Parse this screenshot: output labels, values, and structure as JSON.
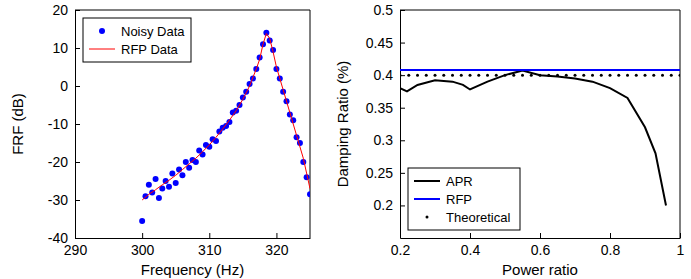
{
  "chart_data": [
    {
      "type": "line",
      "x_label": "Frequency (Hz)",
      "y_label": "FRF (dB)",
      "xlim": [
        290,
        325
      ],
      "ylim": [
        -40,
        20
      ],
      "xticks": [
        290,
        300,
        310,
        320
      ],
      "yticks": [
        -40,
        -30,
        -20,
        -10,
        0,
        10,
        20
      ],
      "legend": "upper left",
      "series": [
        {
          "name": "Noisy Data",
          "type": "scatter",
          "color": "#0000ff",
          "marker": "circle",
          "line_style": "none",
          "x": [
            300,
            300.5,
            301,
            301.5,
            302,
            302.5,
            303,
            303.5,
            304,
            304.5,
            305,
            305.5,
            306,
            306.5,
            307,
            307.5,
            308,
            308.5,
            309,
            309.5,
            310,
            310.5,
            311,
            311.5,
            312,
            312.5,
            313,
            313.5,
            314,
            314.5,
            315,
            315.5,
            316,
            316.5,
            317,
            317.5,
            318,
            318.5,
            319,
            319.5,
            320,
            320.5,
            321,
            321.5,
            322,
            322.5,
            323,
            323.5,
            324,
            324.5,
            325
          ],
          "values": [
            -35.5,
            -29,
            -26,
            -28,
            -24.5,
            -29.5,
            -27,
            -25,
            -26.5,
            -23,
            -25.5,
            -22,
            -23.5,
            -20,
            -21.5,
            -19.5,
            -20,
            -17,
            -18,
            -15.5,
            -16,
            -14,
            -14.5,
            -12,
            -11,
            -10.5,
            -9.5,
            -7,
            -6.5,
            -5,
            -3,
            -1.5,
            0.5,
            2,
            4.5,
            7.5,
            11,
            14,
            12,
            9.5,
            4.5,
            2,
            -1.5,
            -4,
            -7.5,
            -9,
            -13.5,
            -15,
            -20,
            -24,
            -28.5
          ]
        },
        {
          "name": "RFP Data",
          "type": "line",
          "color": "#ff0000",
          "line_style": "solid",
          "x": [
            300,
            301,
            302,
            303,
            304,
            305,
            306,
            307,
            308,
            309,
            310,
            311,
            312,
            313,
            314,
            315,
            316,
            317,
            317.5,
            318,
            318.5,
            319,
            319.5,
            320,
            321,
            322,
            323,
            324,
            325
          ],
          "values": [
            -30,
            -28.5,
            -27.3,
            -26,
            -24.8,
            -23.5,
            -22,
            -20.5,
            -19,
            -17.3,
            -15.5,
            -13.5,
            -11.3,
            -9,
            -6.5,
            -3.5,
            0,
            4.5,
            7,
            11,
            13.8,
            12.5,
            9,
            5,
            -1,
            -7,
            -13,
            -19,
            -27
          ]
        }
      ]
    },
    {
      "type": "line",
      "x_label": "Power ratio",
      "y_label": "Damping Ratio (%)",
      "xlim": [
        0.2,
        1
      ],
      "ylim": [
        0.15,
        0.5
      ],
      "xticks": [
        0.2,
        0.4,
        0.6,
        0.8,
        1
      ],
      "yticks": [
        0.2,
        0.25,
        0.3,
        0.35,
        0.4,
        0.45,
        0.5
      ],
      "legend": "lower left",
      "series": [
        {
          "name": "APR",
          "type": "line",
          "color": "#000000",
          "line_style": "solid",
          "x": [
            0.2,
            0.22,
            0.25,
            0.3,
            0.35,
            0.38,
            0.4,
            0.45,
            0.5,
            0.55,
            0.6,
            0.65,
            0.7,
            0.75,
            0.8,
            0.85,
            0.9,
            0.93,
            0.96
          ],
          "values": [
            0.38,
            0.375,
            0.385,
            0.392,
            0.39,
            0.385,
            0.378,
            0.39,
            0.4,
            0.407,
            0.4,
            0.398,
            0.395,
            0.39,
            0.38,
            0.365,
            0.32,
            0.28,
            0.2
          ]
        },
        {
          "name": "RFP",
          "type": "line",
          "color": "#0000ff",
          "line_style": "solid",
          "x": [
            0.2,
            1
          ],
          "values": [
            0.408,
            0.408
          ]
        },
        {
          "name": "Theoretical",
          "type": "scatter",
          "color": "#000000",
          "marker": "dot",
          "line_style": "none",
          "x": [
            0.2,
            0.225,
            0.25,
            0.275,
            0.3,
            0.325,
            0.35,
            0.375,
            0.4,
            0.425,
            0.45,
            0.475,
            0.5,
            0.525,
            0.55,
            0.575,
            0.6,
            0.625,
            0.65,
            0.675,
            0.7,
            0.725,
            0.75,
            0.775,
            0.8,
            0.825,
            0.85,
            0.875,
            0.9,
            0.925,
            0.95,
            0.975,
            1
          ],
          "values": [
            0.4,
            0.4,
            0.4,
            0.4,
            0.4,
            0.4,
            0.4,
            0.4,
            0.4,
            0.4,
            0.4,
            0.4,
            0.4,
            0.4,
            0.4,
            0.4,
            0.4,
            0.4,
            0.4,
            0.4,
            0.4,
            0.4,
            0.4,
            0.4,
            0.4,
            0.4,
            0.4,
            0.4,
            0.4,
            0.4,
            0.4,
            0.4,
            0.4
          ]
        }
      ]
    }
  ]
}
